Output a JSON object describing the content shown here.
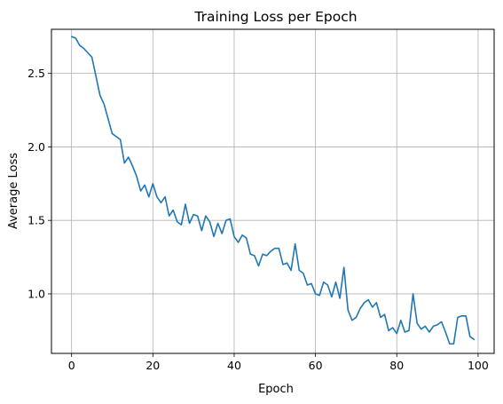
{
  "chart_data": {
    "type": "line",
    "title": "Training Loss per Epoch",
    "xlabel": "Epoch",
    "ylabel": "Average Loss",
    "xlim": [
      -4.95,
      103.95
    ],
    "ylim": [
      0.595,
      2.8
    ],
    "xticks": [
      0,
      20,
      40,
      60,
      80,
      100
    ],
    "xtick_labels": [
      "0",
      "20",
      "40",
      "60",
      "80",
      "100"
    ],
    "yticks": [
      1.0,
      1.5,
      2.0,
      2.5
    ],
    "ytick_labels": [
      "1.0",
      "1.5",
      "2.0",
      "2.5"
    ],
    "grid": true,
    "line_color": "#1f77b4",
    "series": [
      {
        "x": [
          0,
          1,
          2,
          3,
          4,
          5,
          6,
          7,
          8,
          9,
          10,
          11,
          12,
          13,
          14,
          15,
          16,
          17,
          18,
          19,
          20,
          21,
          22,
          23,
          24,
          25,
          26,
          27,
          28,
          29,
          30,
          31,
          32,
          33,
          34,
          35,
          36,
          37,
          38,
          39,
          40,
          41,
          42,
          43,
          44,
          45,
          46,
          47,
          48,
          49,
          50,
          51,
          52,
          53,
          54,
          55,
          56,
          57,
          58,
          59,
          60,
          61,
          62,
          63,
          64,
          65,
          66,
          67,
          68,
          69,
          70,
          71,
          72,
          73,
          74,
          75,
          76,
          77,
          78,
          79,
          80,
          81,
          82,
          83,
          84,
          85,
          86,
          87,
          88,
          89,
          90,
          91,
          92,
          93,
          94,
          95,
          96,
          97,
          98,
          99
        ],
        "values": [
          2.75,
          2.74,
          2.69,
          2.67,
          2.64,
          2.61,
          2.48,
          2.35,
          2.29,
          2.19,
          2.09,
          2.07,
          2.05,
          1.89,
          1.93,
          1.87,
          1.8,
          1.7,
          1.74,
          1.66,
          1.75,
          1.66,
          1.62,
          1.66,
          1.53,
          1.57,
          1.49,
          1.47,
          1.61,
          1.48,
          1.54,
          1.53,
          1.43,
          1.53,
          1.49,
          1.39,
          1.48,
          1.41,
          1.5,
          1.51,
          1.39,
          1.35,
          1.4,
          1.38,
          1.27,
          1.26,
          1.19,
          1.27,
          1.26,
          1.29,
          1.31,
          1.31,
          1.2,
          1.21,
          1.16,
          1.34,
          1.16,
          1.14,
          1.06,
          1.07,
          1.0,
          0.99,
          1.08,
          1.06,
          0.98,
          1.08,
          0.97,
          1.18,
          0.89,
          0.82,
          0.84,
          0.9,
          0.94,
          0.96,
          0.91,
          0.94,
          0.84,
          0.86,
          0.75,
          0.77,
          0.73,
          0.82,
          0.74,
          0.75,
          1.0,
          0.8,
          0.76,
          0.78,
          0.74,
          0.78,
          0.79,
          0.81,
          0.74,
          0.66,
          0.66,
          0.84,
          0.85,
          0.85,
          0.71,
          0.69
        ]
      }
    ]
  }
}
